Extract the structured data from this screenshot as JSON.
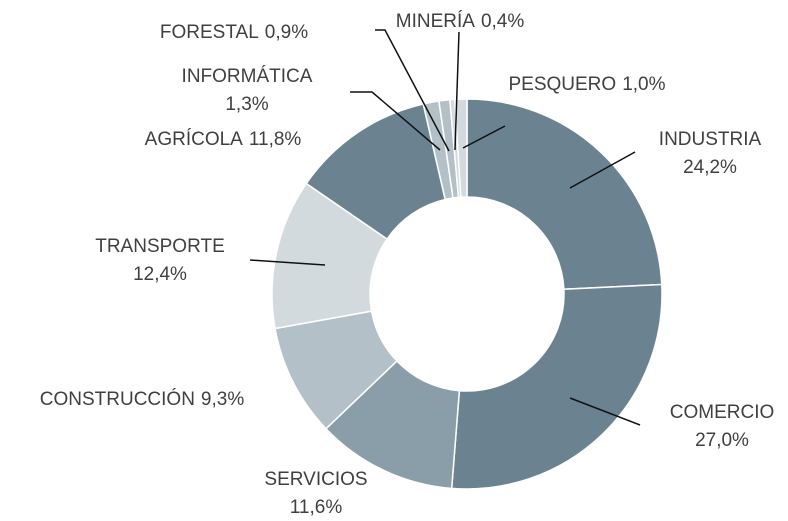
{
  "chart_data": {
    "type": "donut",
    "categories": [
      "INDUSTRIA",
      "COMERCIO",
      "SERVICIOS",
      "CONSTRUCCIÓN",
      "TRANSPORTE",
      "AGRÍCOLA",
      "INFORMÁTICA",
      "FORESTAL",
      "MINERÍA",
      "PESQUERO"
    ],
    "values": [
      24.2,
      27.0,
      11.6,
      9.3,
      12.4,
      11.8,
      1.3,
      0.9,
      0.4,
      1.0
    ],
    "value_labels": [
      "24,2%",
      "27,0%",
      "11,6%",
      "9,3%",
      "12,4%",
      "11,8%",
      "1,3%",
      "0,9%",
      "0,4%",
      "1,0%"
    ],
    "colors": [
      "#6b8391",
      "#6b8391",
      "#8a9ea9",
      "#b3c0c7",
      "#d3dadd",
      "#6b8391",
      "#b3c0c7",
      "#b3c0c7",
      "#d3dadd",
      "#d3dadd"
    ]
  }
}
